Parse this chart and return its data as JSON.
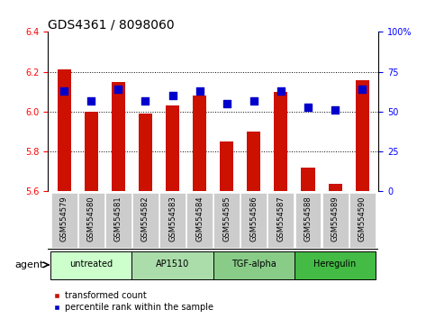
{
  "title": "GDS4361 / 8098060",
  "samples": [
    "GSM554579",
    "GSM554580",
    "GSM554581",
    "GSM554582",
    "GSM554583",
    "GSM554584",
    "GSM554585",
    "GSM554586",
    "GSM554587",
    "GSM554588",
    "GSM554589",
    "GSM554590"
  ],
  "red_values": [
    6.21,
    6.0,
    6.15,
    5.99,
    6.03,
    6.08,
    5.85,
    5.9,
    6.1,
    5.72,
    5.64,
    6.16
  ],
  "blue_values": [
    63,
    57,
    64,
    57,
    60,
    63,
    55,
    57,
    63,
    53,
    51,
    64
  ],
  "ylim_left": [
    5.6,
    6.4
  ],
  "ylim_right": [
    0,
    100
  ],
  "yticks_left": [
    5.6,
    5.8,
    6.0,
    6.2,
    6.4
  ],
  "yticks_right": [
    0,
    25,
    50,
    75,
    100
  ],
  "bar_color": "#cc1100",
  "dot_color": "#0000cc",
  "baseline": 5.6,
  "agent_groups": [
    {
      "label": "untreated",
      "start": 0,
      "end": 3,
      "color": "#ccffcc"
    },
    {
      "label": "AP1510",
      "start": 3,
      "end": 6,
      "color": "#aaddaa"
    },
    {
      "label": "TGF-alpha",
      "start": 6,
      "end": 9,
      "color": "#88cc88"
    },
    {
      "label": "Heregulin",
      "start": 9,
      "end": 12,
      "color": "#44bb44"
    }
  ],
  "agent_label": "agent",
  "legend_red": "transformed count",
  "legend_blue": "percentile rank within the sample",
  "bar_width": 0.5,
  "dot_size": 28,
  "title_fontsize": 10,
  "tick_fontsize": 7,
  "sample_fontsize": 6,
  "agent_fontsize": 7,
  "legend_fontsize": 7,
  "grid_yticks": [
    5.8,
    6.0,
    6.2
  ],
  "xtick_bg": "#cccccc"
}
